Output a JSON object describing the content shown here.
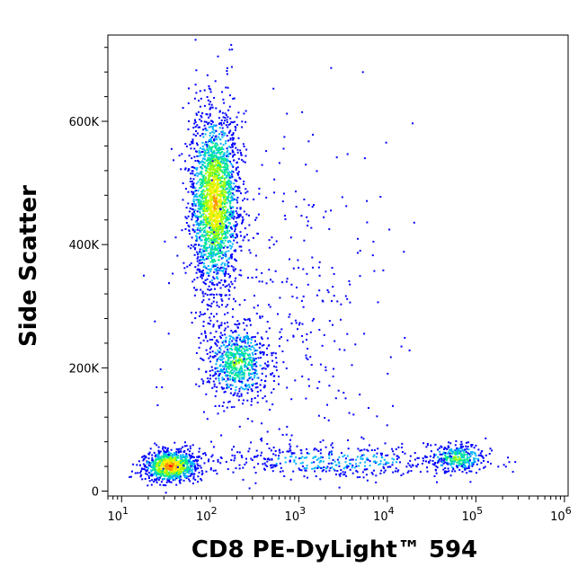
{
  "chart_data": {
    "type": "scatter",
    "style": "density-dot-plot",
    "xlabel": "CD8 PE-DyLight™ 594",
    "ylabel": "Side Scatter",
    "x_scale": "log",
    "xlim": [
      7,
      1100000
    ],
    "ylim": [
      -8000,
      740000
    ],
    "x_ticks": [
      {
        "value": 10,
        "base": "10",
        "exp": "1"
      },
      {
        "value": 100,
        "base": "10",
        "exp": "2"
      },
      {
        "value": 1000,
        "base": "10",
        "exp": "3"
      },
      {
        "value": 10000,
        "base": "10",
        "exp": "4"
      },
      {
        "value": 100000,
        "base": "10",
        "exp": "5"
      },
      {
        "value": 1000000,
        "base": "10",
        "exp": "6"
      }
    ],
    "y_ticks": [
      {
        "value": 0,
        "label": "0"
      },
      {
        "value": 200000,
        "label": "200K"
      },
      {
        "value": 400000,
        "label": "400K"
      },
      {
        "value": 600000,
        "label": "600K"
      }
    ],
    "grid": false,
    "legend": "none",
    "density_colors": [
      "#0000ff",
      "#00b4ff",
      "#00e890",
      "#a0ff00",
      "#ffee00",
      "#ff9000",
      "#ff0000"
    ],
    "populations": [
      {
        "x_center": 110,
        "y_center": 470000,
        "x_log_sd": 0.14,
        "y_sd": 75000,
        "weight": 0.42,
        "peak_level": 5
      },
      {
        "x_center": 200,
        "y_center": 210000,
        "x_log_sd": 0.17,
        "y_sd": 30000,
        "weight": 0.13,
        "peak_level": 3
      },
      {
        "x_center": 35,
        "y_center": 42000,
        "x_log_sd": 0.16,
        "y_sd": 13000,
        "weight": 0.17,
        "peak_level": 6
      },
      {
        "x_center": 60000,
        "y_center": 55000,
        "x_log_sd": 0.16,
        "y_sd": 11000,
        "weight": 0.06,
        "peak_level": 3
      },
      {
        "x_center": 2500,
        "y_center": 50000,
        "x_log_sd": 0.75,
        "y_sd": 15000,
        "weight": 0.08,
        "peak_level": 1
      },
      {
        "x_center": 800,
        "y_center": 300000,
        "x_log_sd": 0.55,
        "y_sd": 140000,
        "weight": 0.06,
        "peak_level": 0
      }
    ]
  }
}
